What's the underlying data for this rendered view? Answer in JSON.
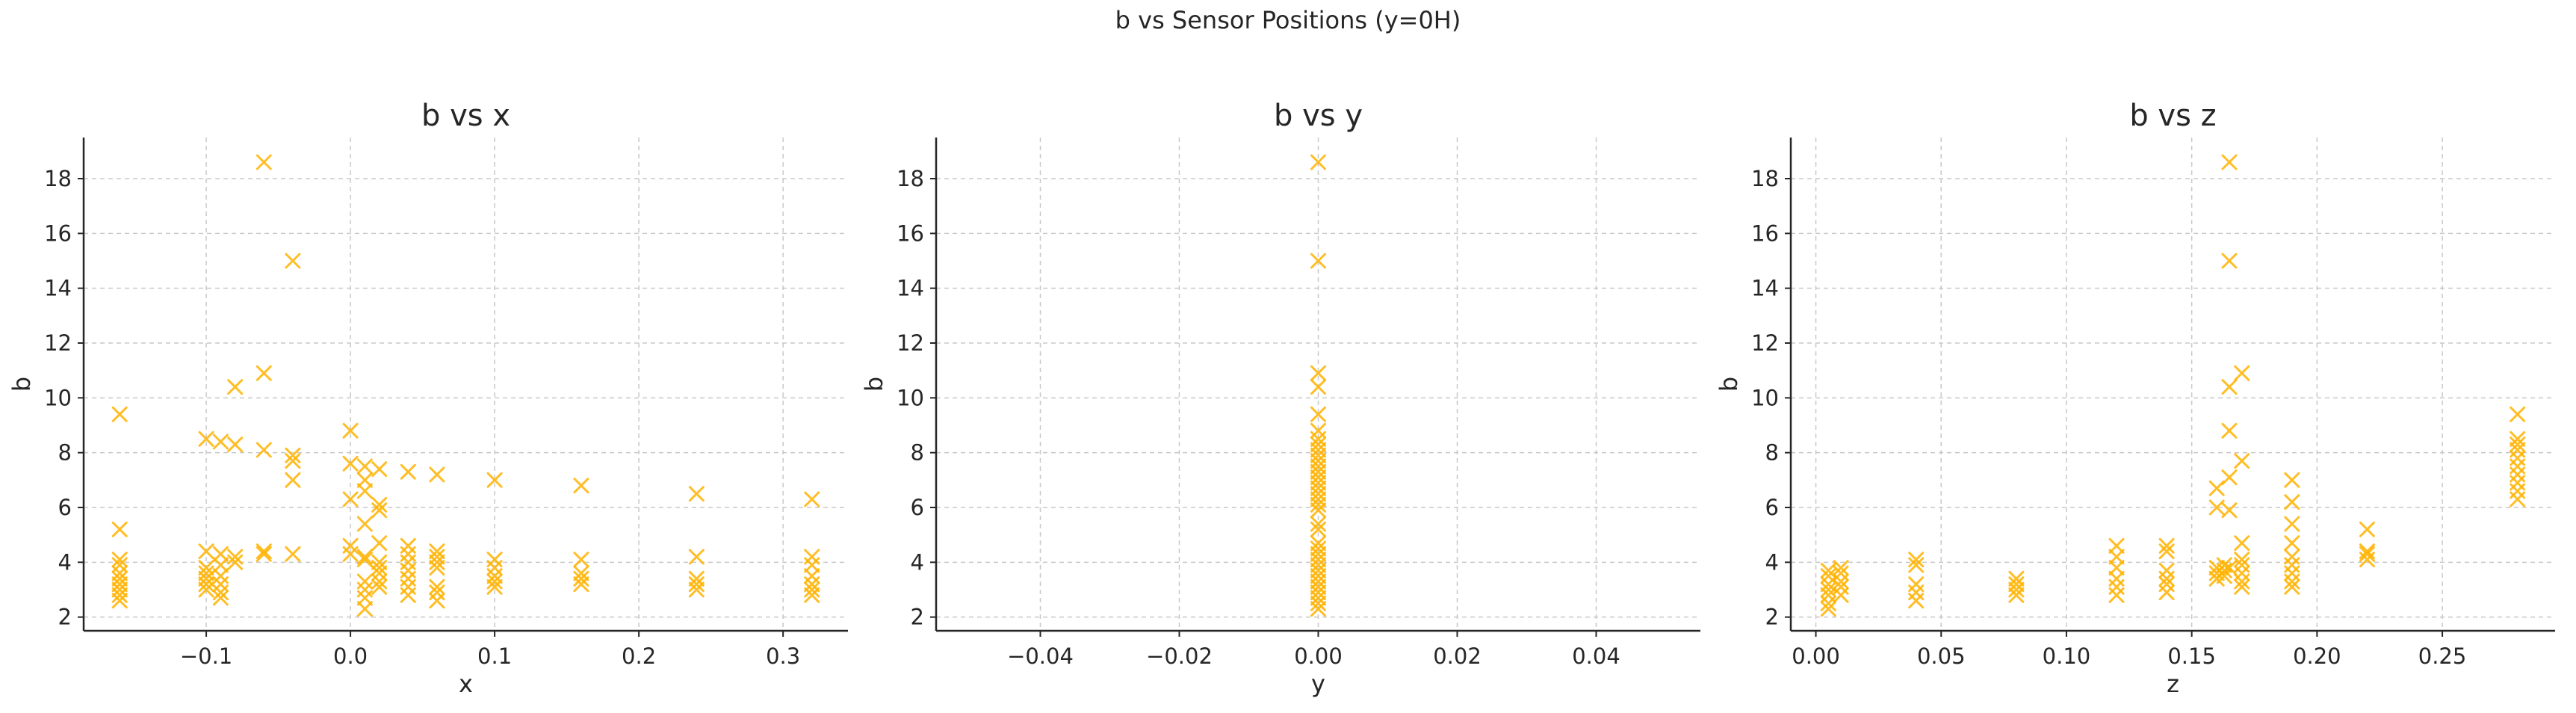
{
  "figure": {
    "suptitle": "b vs Sensor Positions (y=0H)"
  },
  "colors": {
    "marker": "#ffb300",
    "axis": "#262626",
    "grid": "#c8c8c8"
  },
  "chart_data": [
    {
      "type": "scatter",
      "title": "b vs x",
      "xlabel": "x",
      "ylabel": "b",
      "marker": "x",
      "grid": true,
      "xlim": [
        -0.185,
        0.345
      ],
      "ylim": [
        1.5,
        19.5
      ],
      "xticks": [
        -0.1,
        0.0,
        0.1,
        0.2,
        0.3
      ],
      "xtick_labels": [
        "−0.1",
        "0.0",
        "0.1",
        "0.2",
        "0.3"
      ],
      "yticks": [
        2,
        4,
        6,
        8,
        10,
        12,
        14,
        16,
        18
      ],
      "ytick_labels": [
        "2",
        "4",
        "6",
        "8",
        "10",
        "12",
        "14",
        "16",
        "18"
      ],
      "points": [
        [
          -0.16,
          9.4
        ],
        [
          -0.16,
          5.2
        ],
        [
          -0.16,
          4.1
        ],
        [
          -0.16,
          3.9
        ],
        [
          -0.16,
          3.6
        ],
        [
          -0.16,
          3.4
        ],
        [
          -0.16,
          3.2
        ],
        [
          -0.16,
          3.0
        ],
        [
          -0.16,
          2.8
        ],
        [
          -0.16,
          2.6
        ],
        [
          -0.1,
          8.5
        ],
        [
          -0.1,
          4.4
        ],
        [
          -0.1,
          3.8
        ],
        [
          -0.1,
          3.6
        ],
        [
          -0.1,
          3.4
        ],
        [
          -0.1,
          3.2
        ],
        [
          -0.1,
          3.0
        ],
        [
          -0.09,
          8.4
        ],
        [
          -0.09,
          4.3
        ],
        [
          -0.09,
          3.9
        ],
        [
          -0.09,
          3.5
        ],
        [
          -0.09,
          3.2
        ],
        [
          -0.09,
          2.9
        ],
        [
          -0.09,
          2.7
        ],
        [
          -0.08,
          10.4
        ],
        [
          -0.08,
          8.3
        ],
        [
          -0.08,
          4.2
        ],
        [
          -0.08,
          4.0
        ],
        [
          -0.06,
          18.6
        ],
        [
          -0.06,
          10.9
        ],
        [
          -0.06,
          8.1
        ],
        [
          -0.06,
          4.4
        ],
        [
          -0.06,
          4.3
        ],
        [
          -0.04,
          15.0
        ],
        [
          -0.04,
          7.9
        ],
        [
          -0.04,
          7.7
        ],
        [
          -0.04,
          7.0
        ],
        [
          -0.04,
          4.3
        ],
        [
          0.0,
          8.8
        ],
        [
          0.0,
          7.6
        ],
        [
          0.0,
          6.3
        ],
        [
          0.0,
          4.6
        ],
        [
          0.0,
          4.3
        ],
        [
          0.01,
          7.5
        ],
        [
          0.01,
          7.0
        ],
        [
          0.01,
          6.6
        ],
        [
          0.01,
          5.4
        ],
        [
          0.01,
          4.2
        ],
        [
          0.01,
          4.1
        ],
        [
          0.01,
          3.3
        ],
        [
          0.01,
          3.0
        ],
        [
          0.01,
          2.7
        ],
        [
          0.01,
          2.3
        ],
        [
          0.02,
          7.4
        ],
        [
          0.02,
          6.1
        ],
        [
          0.02,
          5.9
        ],
        [
          0.02,
          4.7
        ],
        [
          0.02,
          4.0
        ],
        [
          0.02,
          3.8
        ],
        [
          0.02,
          3.6
        ],
        [
          0.02,
          3.3
        ],
        [
          0.02,
          3.1
        ],
        [
          0.04,
          7.3
        ],
        [
          0.04,
          4.6
        ],
        [
          0.04,
          4.3
        ],
        [
          0.04,
          4.0
        ],
        [
          0.04,
          3.7
        ],
        [
          0.04,
          3.4
        ],
        [
          0.04,
          3.1
        ],
        [
          0.04,
          2.8
        ],
        [
          0.06,
          7.2
        ],
        [
          0.06,
          4.4
        ],
        [
          0.06,
          4.2
        ],
        [
          0.06,
          4.0
        ],
        [
          0.06,
          3.8
        ],
        [
          0.06,
          3.1
        ],
        [
          0.06,
          2.9
        ],
        [
          0.06,
          2.6
        ],
        [
          0.1,
          7.0
        ],
        [
          0.1,
          4.1
        ],
        [
          0.1,
          3.8
        ],
        [
          0.1,
          3.5
        ],
        [
          0.1,
          3.3
        ],
        [
          0.1,
          3.1
        ],
        [
          0.16,
          6.8
        ],
        [
          0.16,
          4.1
        ],
        [
          0.16,
          3.6
        ],
        [
          0.16,
          3.4
        ],
        [
          0.16,
          3.2
        ],
        [
          0.24,
          6.5
        ],
        [
          0.24,
          4.2
        ],
        [
          0.24,
          3.4
        ],
        [
          0.24,
          3.2
        ],
        [
          0.24,
          3.0
        ],
        [
          0.32,
          6.3
        ],
        [
          0.32,
          4.2
        ],
        [
          0.32,
          3.9
        ],
        [
          0.32,
          3.5
        ],
        [
          0.32,
          3.2
        ],
        [
          0.32,
          3.0
        ],
        [
          0.32,
          2.8
        ]
      ]
    },
    {
      "type": "scatter",
      "title": "b vs y",
      "xlabel": "y",
      "ylabel": "b",
      "marker": "x",
      "grid": true,
      "xlim": [
        -0.055,
        0.055
      ],
      "ylim": [
        1.5,
        19.5
      ],
      "xticks": [
        -0.04,
        -0.02,
        0.0,
        0.02,
        0.04
      ],
      "xtick_labels": [
        "−0.04",
        "−0.02",
        "0.00",
        "0.02",
        "0.04"
      ],
      "yticks": [
        2,
        4,
        6,
        8,
        10,
        12,
        14,
        16,
        18
      ],
      "ytick_labels": [
        "2",
        "4",
        "6",
        "8",
        "10",
        "12",
        "14",
        "16",
        "18"
      ],
      "points": [
        [
          0,
          18.6
        ],
        [
          0,
          15.0
        ],
        [
          0,
          10.9
        ],
        [
          0,
          10.4
        ],
        [
          0,
          9.4
        ],
        [
          0,
          8.8
        ],
        [
          0,
          8.5
        ],
        [
          0,
          8.3
        ],
        [
          0,
          8.1
        ],
        [
          0,
          7.9
        ],
        [
          0,
          7.7
        ],
        [
          0,
          7.5
        ],
        [
          0,
          7.3
        ],
        [
          0,
          7.1
        ],
        [
          0,
          6.9
        ],
        [
          0,
          6.7
        ],
        [
          0,
          6.5
        ],
        [
          0,
          6.3
        ],
        [
          0,
          6.1
        ],
        [
          0,
          5.9
        ],
        [
          0,
          5.4
        ],
        [
          0,
          5.2
        ],
        [
          0,
          4.7
        ],
        [
          0,
          4.5
        ],
        [
          0,
          4.3
        ],
        [
          0,
          4.1
        ],
        [
          0,
          3.9
        ],
        [
          0,
          3.7
        ],
        [
          0,
          3.5
        ],
        [
          0,
          3.3
        ],
        [
          0,
          3.1
        ],
        [
          0,
          2.9
        ],
        [
          0,
          2.7
        ],
        [
          0,
          2.5
        ],
        [
          0,
          2.3
        ]
      ]
    },
    {
      "type": "scatter",
      "title": "b vs z",
      "xlabel": "z",
      "ylabel": "b",
      "marker": "x",
      "grid": true,
      "xlim": [
        -0.01,
        0.295
      ],
      "ylim": [
        1.5,
        19.5
      ],
      "xticks": [
        0.0,
        0.05,
        0.1,
        0.15,
        0.2,
        0.25
      ],
      "xtick_labels": [
        "0.00",
        "0.05",
        "0.10",
        "0.15",
        "0.20",
        "0.25"
      ],
      "yticks": [
        2,
        4,
        6,
        8,
        10,
        12,
        14,
        16,
        18
      ],
      "ytick_labels": [
        "2",
        "4",
        "6",
        "8",
        "10",
        "12",
        "14",
        "16",
        "18"
      ],
      "points": [
        [
          0.005,
          3.7
        ],
        [
          0.005,
          3.5
        ],
        [
          0.005,
          3.2
        ],
        [
          0.005,
          3.0
        ],
        [
          0.005,
          2.8
        ],
        [
          0.005,
          2.5
        ],
        [
          0.005,
          2.3
        ],
        [
          0.01,
          3.8
        ],
        [
          0.01,
          3.6
        ],
        [
          0.01,
          3.3
        ],
        [
          0.01,
          3.1
        ],
        [
          0.01,
          2.8
        ],
        [
          0.04,
          4.1
        ],
        [
          0.04,
          3.9
        ],
        [
          0.04,
          3.2
        ],
        [
          0.04,
          2.9
        ],
        [
          0.04,
          2.6
        ],
        [
          0.08,
          3.4
        ],
        [
          0.08,
          3.2
        ],
        [
          0.08,
          3.0
        ],
        [
          0.08,
          2.8
        ],
        [
          0.12,
          4.6
        ],
        [
          0.12,
          4.2
        ],
        [
          0.12,
          3.8
        ],
        [
          0.12,
          3.4
        ],
        [
          0.12,
          3.1
        ],
        [
          0.12,
          2.8
        ],
        [
          0.14,
          4.6
        ],
        [
          0.14,
          4.4
        ],
        [
          0.14,
          3.7
        ],
        [
          0.14,
          3.4
        ],
        [
          0.14,
          3.2
        ],
        [
          0.14,
          2.9
        ],
        [
          0.16,
          6.7
        ],
        [
          0.16,
          6.0
        ],
        [
          0.16,
          3.8
        ],
        [
          0.16,
          3.6
        ],
        [
          0.16,
          3.4
        ],
        [
          0.163,
          3.9
        ],
        [
          0.163,
          3.7
        ],
        [
          0.163,
          3.5
        ],
        [
          0.165,
          18.6
        ],
        [
          0.165,
          15.0
        ],
        [
          0.165,
          10.4
        ],
        [
          0.165,
          8.8
        ],
        [
          0.165,
          7.1
        ],
        [
          0.165,
          5.9
        ],
        [
          0.165,
          3.8
        ],
        [
          0.17,
          10.9
        ],
        [
          0.17,
          7.7
        ],
        [
          0.17,
          4.7
        ],
        [
          0.17,
          4.1
        ],
        [
          0.17,
          3.9
        ],
        [
          0.17,
          3.6
        ],
        [
          0.17,
          3.3
        ],
        [
          0.17,
          3.1
        ],
        [
          0.19,
          7.0
        ],
        [
          0.19,
          6.2
        ],
        [
          0.19,
          5.4
        ],
        [
          0.19,
          4.7
        ],
        [
          0.19,
          4.2
        ],
        [
          0.19,
          3.9
        ],
        [
          0.19,
          3.6
        ],
        [
          0.19,
          3.3
        ],
        [
          0.19,
          3.1
        ],
        [
          0.22,
          5.2
        ],
        [
          0.22,
          4.4
        ],
        [
          0.22,
          4.3
        ],
        [
          0.22,
          4.1
        ],
        [
          0.28,
          9.4
        ],
        [
          0.28,
          8.5
        ],
        [
          0.28,
          8.3
        ],
        [
          0.28,
          8.1
        ],
        [
          0.28,
          7.8
        ],
        [
          0.28,
          7.5
        ],
        [
          0.28,
          7.2
        ],
        [
          0.28,
          6.9
        ],
        [
          0.28,
          6.6
        ],
        [
          0.28,
          6.3
        ]
      ]
    }
  ]
}
